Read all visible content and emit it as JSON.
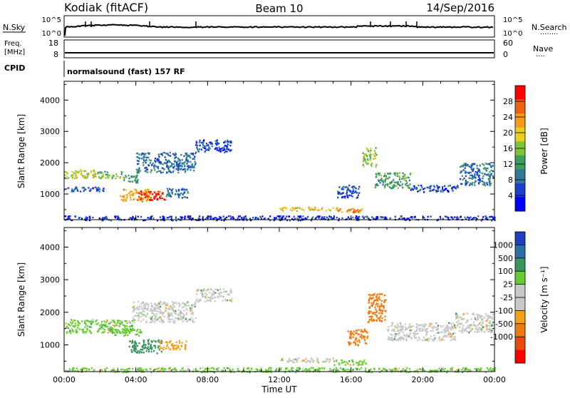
{
  "header": {
    "station": "Kodiak (fitACF)",
    "beam": "Beam 10",
    "date": "14/Sep/2016"
  },
  "top_panels": {
    "nsky_label": "N.Sky",
    "nsearch_label": "N.Search",
    "nsearch_dots": "········",
    "noise_ticks": [
      "10^5",
      "10^0"
    ],
    "freq_label_1": "Freq.",
    "freq_label_2": "[MHz]",
    "freq_ticks": [
      "18",
      "8"
    ],
    "nave_label": "Nave",
    "nave_dots": "····",
    "nave_ticks": [
      "60",
      "0"
    ],
    "cpid_label": "CPID",
    "cpid_text": "normalsound (fast) 157 RF"
  },
  "chart_data": [
    {
      "type": "heatmap",
      "name": "power",
      "xlabel": "",
      "ylabel": "Slant Range [km]",
      "x_ticks": [
        "00:00",
        "04:00",
        "08:00",
        "12:00",
        "16:00",
        "20:00",
        "00:00"
      ],
      "x_range_hours": [
        0,
        24
      ],
      "y_ticks": [
        1000,
        2000,
        3000,
        4000
      ],
      "ylim": [
        180,
        4600
      ],
      "colorbar": {
        "label": "Power [dB]",
        "ticks": [
          4,
          8,
          12,
          16,
          20,
          24,
          28
        ],
        "range": [
          0,
          32
        ],
        "colors": [
          "#0000ff",
          "#1b3fc8",
          "#2f7a9b",
          "#3d9e5a",
          "#7fc23b",
          "#e6cf1f",
          "#f49a16",
          "#ee6112",
          "#ff0000"
        ]
      },
      "features": [
        {
          "h0": 0.0,
          "h1": 1.8,
          "r0": 1520,
          "r1": 1800,
          "level": 18
        },
        {
          "h0": 1.8,
          "h1": 3.2,
          "r0": 1520,
          "r1": 1740,
          "level": 14
        },
        {
          "h0": 3.2,
          "h1": 4.1,
          "r0": 1380,
          "r1": 1620,
          "level": 12
        },
        {
          "h0": 4.0,
          "h1": 7.3,
          "r0": 1700,
          "r1": 2350,
          "level": 8
        },
        {
          "h0": 7.3,
          "h1": 9.3,
          "r0": 2350,
          "r1": 2750,
          "level": 6
        },
        {
          "h0": 0.0,
          "h1": 2.2,
          "r0": 1100,
          "r1": 1250,
          "level": 6
        },
        {
          "h0": 3.1,
          "h1": 4.8,
          "r0": 780,
          "r1": 1180,
          "level": 22
        },
        {
          "h0": 4.0,
          "h1": 5.6,
          "r0": 820,
          "r1": 1120,
          "level": 30
        },
        {
          "h0": 5.6,
          "h1": 6.9,
          "r0": 900,
          "r1": 1200,
          "level": 8
        },
        {
          "h0": 12.0,
          "h1": 15.2,
          "r0": 480,
          "r1": 600,
          "level": 20
        },
        {
          "h0": 15.2,
          "h1": 16.6,
          "r0": 430,
          "r1": 560,
          "level": 24
        },
        {
          "h0": 16.6,
          "h1": 17.4,
          "r0": 1900,
          "r1": 2500,
          "level": 16
        },
        {
          "h0": 17.3,
          "h1": 19.3,
          "r0": 1200,
          "r1": 1700,
          "level": 12
        },
        {
          "h0": 19.3,
          "h1": 22.0,
          "r0": 1080,
          "r1": 1300,
          "level": 6
        },
        {
          "h0": 22.0,
          "h1": 23.9,
          "r0": 1300,
          "r1": 2000,
          "level": 8
        },
        {
          "h0": 15.2,
          "h1": 16.5,
          "r0": 900,
          "r1": 1300,
          "level": 6
        },
        {
          "h0": 0.0,
          "h1": 24.0,
          "r0": 180,
          "r1": 320,
          "level": 4
        }
      ]
    },
    {
      "type": "heatmap",
      "name": "velocity",
      "xlabel": "Time UT",
      "ylabel": "Slant Range [km]",
      "x_ticks": [
        "00:00",
        "04:00",
        "08:00",
        "12:00",
        "16:00",
        "20:00",
        "00:00"
      ],
      "x_range_hours": [
        0,
        24
      ],
      "y_ticks": [
        1000,
        2000,
        3000,
        4000
      ],
      "ylim": [
        180,
        4600
      ],
      "colorbar": {
        "label": "Velocity [m s⁻¹]",
        "ticks": [
          "1000",
          "500",
          "100",
          "25",
          "-25",
          "-100",
          "-500",
          "-1000"
        ],
        "colors": [
          "#1f3fbf",
          "#2b6fa8",
          "#3a9460",
          "#66cc33",
          "#c8c8c8",
          "#c8c8c8",
          "#f2a21a",
          "#ee7a12",
          "#e64a10",
          "#ff0000"
        ]
      },
      "features": [
        {
          "h0": 0.0,
          "h1": 3.8,
          "r0": 1380,
          "r1": 1800,
          "level": 25
        },
        {
          "h0": 3.8,
          "h1": 7.3,
          "r0": 1700,
          "r1": 2350,
          "level": 0
        },
        {
          "h0": 7.3,
          "h1": 9.3,
          "r0": 2350,
          "r1": 2750,
          "level": 0
        },
        {
          "h0": 2.8,
          "h1": 4.4,
          "r0": 1300,
          "r1": 1500,
          "level": 50
        },
        {
          "h0": 3.6,
          "h1": 5.4,
          "r0": 750,
          "r1": 1180,
          "level": 150
        },
        {
          "h0": 5.3,
          "h1": 6.8,
          "r0": 880,
          "r1": 1150,
          "level": -400
        },
        {
          "h0": 12.0,
          "h1": 15.0,
          "r0": 480,
          "r1": 620,
          "level": -60
        },
        {
          "h0": 15.0,
          "h1": 16.8,
          "r0": 400,
          "r1": 560,
          "level": 50
        },
        {
          "h0": 15.8,
          "h1": 16.9,
          "r0": 1000,
          "r1": 1500,
          "level": -600
        },
        {
          "h0": 16.9,
          "h1": 17.9,
          "r0": 1700,
          "r1": 2600,
          "level": -800
        },
        {
          "h0": 18.0,
          "h1": 21.8,
          "r0": 1150,
          "r1": 1700,
          "level": 0
        },
        {
          "h0": 21.8,
          "h1": 23.9,
          "r0": 1400,
          "r1": 2000,
          "level": 0
        },
        {
          "h0": 0.0,
          "h1": 24.0,
          "r0": 180,
          "r1": 320,
          "level": 40
        }
      ]
    }
  ]
}
